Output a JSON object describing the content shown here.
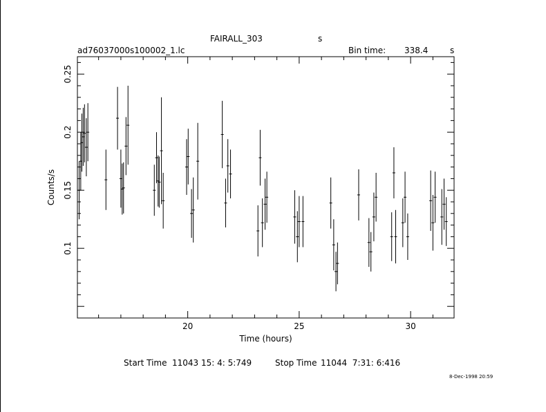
{
  "header": {
    "object": "FAIRALL_303",
    "units_top": "s",
    "file": "ad76037000s100002_1.lc",
    "bin_label": "Bin time:",
    "bin_value": "338.4",
    "bin_unit": "s"
  },
  "footer": {
    "start_label": "Start Time",
    "start_value": "11043 15: 4: 5:749",
    "stop_label": "Stop Time",
    "stop_value": "11044  7:31: 6:416",
    "stamp": "8-Dec-1998 20:59"
  },
  "chart_data": {
    "type": "scatter",
    "xlabel": "Time (hours)",
    "ylabel": "Counts/s",
    "xlim": [
      15.05,
      31.95
    ],
    "ylim": [
      0.04,
      0.265
    ],
    "xticks": [
      20,
      25,
      30
    ],
    "yticks": [
      0.1,
      0.15,
      0.2,
      0.25
    ],
    "error_bars": true,
    "points": [
      [
        15.13,
        0.15,
        0.025
      ],
      [
        15.2,
        0.175,
        0.025
      ],
      [
        15.25,
        0.191,
        0.025
      ],
      [
        15.31,
        0.196,
        0.025
      ],
      [
        15.37,
        0.199,
        0.025
      ],
      [
        15.45,
        0.187,
        0.025
      ],
      [
        15.52,
        0.2,
        0.025
      ],
      [
        16.33,
        0.159,
        0.026
      ],
      [
        16.85,
        0.212,
        0.027
      ],
      [
        17.0,
        0.16,
        0.025
      ],
      [
        17.06,
        0.151,
        0.022
      ],
      [
        17.12,
        0.152,
        0.022
      ],
      [
        17.23,
        0.188,
        0.025
      ],
      [
        17.32,
        0.206,
        0.034
      ],
      [
        18.5,
        0.15,
        0.022
      ],
      [
        18.6,
        0.178,
        0.022
      ],
      [
        18.67,
        0.158,
        0.022
      ],
      [
        18.72,
        0.157,
        0.022
      ],
      [
        18.82,
        0.184,
        0.046
      ],
      [
        18.9,
        0.141,
        0.024
      ],
      [
        19.95,
        0.17,
        0.024
      ],
      [
        20.02,
        0.179,
        0.024
      ],
      [
        20.17,
        0.13,
        0.021
      ],
      [
        20.25,
        0.133,
        0.028
      ],
      [
        20.45,
        0.175,
        0.033
      ],
      [
        21.55,
        0.198,
        0.029
      ],
      [
        21.7,
        0.139,
        0.021
      ],
      [
        21.8,
        0.171,
        0.023
      ],
      [
        21.92,
        0.164,
        0.021
      ],
      [
        23.15,
        0.115,
        0.022
      ],
      [
        23.25,
        0.178,
        0.024
      ],
      [
        23.35,
        0.122,
        0.021
      ],
      [
        23.47,
        0.138,
        0.022
      ],
      [
        23.55,
        0.144,
        0.022
      ],
      [
        24.8,
        0.127,
        0.023
      ],
      [
        24.92,
        0.11,
        0.022
      ],
      [
        25.0,
        0.123,
        0.022
      ],
      [
        25.17,
        0.123,
        0.022
      ],
      [
        26.42,
        0.139,
        0.022
      ],
      [
        26.55,
        0.103,
        0.022
      ],
      [
        26.65,
        0.08,
        0.017
      ],
      [
        26.72,
        0.087,
        0.018
      ],
      [
        27.67,
        0.146,
        0.022
      ],
      [
        28.13,
        0.105,
        0.021
      ],
      [
        28.22,
        0.097,
        0.017
      ],
      [
        28.35,
        0.127,
        0.021
      ],
      [
        28.45,
        0.144,
        0.021
      ],
      [
        29.15,
        0.11,
        0.021
      ],
      [
        29.25,
        0.165,
        0.022
      ],
      [
        29.33,
        0.11,
        0.023
      ],
      [
        29.65,
        0.122,
        0.021
      ],
      [
        29.75,
        0.144,
        0.022
      ],
      [
        29.87,
        0.11,
        0.02
      ],
      [
        30.9,
        0.141,
        0.026
      ],
      [
        31.0,
        0.122,
        0.024
      ],
      [
        31.1,
        0.144,
        0.022
      ],
      [
        31.4,
        0.127,
        0.024
      ],
      [
        31.5,
        0.138,
        0.022
      ],
      [
        31.6,
        0.123,
        0.021
      ]
    ]
  }
}
